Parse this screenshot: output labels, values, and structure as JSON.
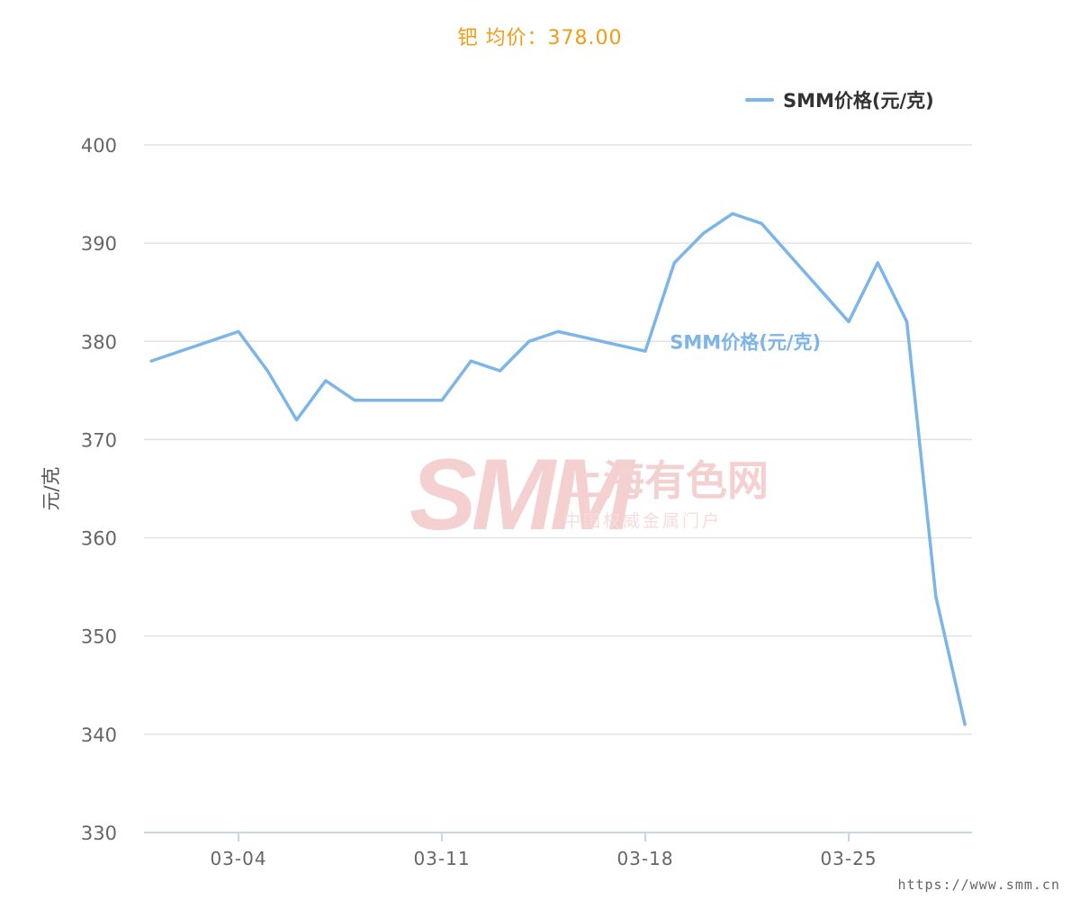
{
  "title": "钯 均价：378.00",
  "source": "https://www.smm.cn",
  "watermark": {
    "main": "SMM",
    "cn_name": "上海有色网",
    "cn_sub": "中国权威金属门户"
  },
  "colors": {
    "title": "#f39c12",
    "series": "#7cb5e8",
    "grid": "#e3e3e3",
    "axis": "#c9d6e3",
    "tick_text": "#666666"
  },
  "chart_data": {
    "type": "line",
    "title": "钯 均价：378.00",
    "xlabel": "",
    "ylabel": "元/克",
    "ylim": [
      330,
      400
    ],
    "yticks": [
      330,
      340,
      350,
      360,
      370,
      380,
      390,
      400
    ],
    "x_tick_labels": [
      "03-04",
      "03-11",
      "03-18",
      "03-25"
    ],
    "x_tick_dates": [
      "03-04",
      "03-11",
      "03-18",
      "03-25"
    ],
    "grid": true,
    "legend_position": "top-right",
    "series": [
      {
        "name": "SMM价格(元/克)",
        "color": "#7cb5e8",
        "points": [
          {
            "date": "03-01",
            "value": 378
          },
          {
            "date": "03-04",
            "value": 381
          },
          {
            "date": "03-05",
            "value": 377
          },
          {
            "date": "03-06",
            "value": 372
          },
          {
            "date": "03-07",
            "value": 376
          },
          {
            "date": "03-08",
            "value": 374
          },
          {
            "date": "03-11",
            "value": 374
          },
          {
            "date": "03-12",
            "value": 378
          },
          {
            "date": "03-13",
            "value": 377
          },
          {
            "date": "03-14",
            "value": 380
          },
          {
            "date": "03-15",
            "value": 381
          },
          {
            "date": "03-18",
            "value": 379
          },
          {
            "date": "03-19",
            "value": 388
          },
          {
            "date": "03-20",
            "value": 391
          },
          {
            "date": "03-21",
            "value": 393
          },
          {
            "date": "03-22",
            "value": 392
          },
          {
            "date": "03-25",
            "value": 382
          },
          {
            "date": "03-26",
            "value": 388
          },
          {
            "date": "03-27",
            "value": 382
          },
          {
            "date": "03-28",
            "value": 354
          },
          {
            "date": "03-29",
            "value": 341
          }
        ]
      }
    ],
    "series_label": {
      "text": "SMM价格(元/克)",
      "anchor_date": "03-19"
    }
  }
}
